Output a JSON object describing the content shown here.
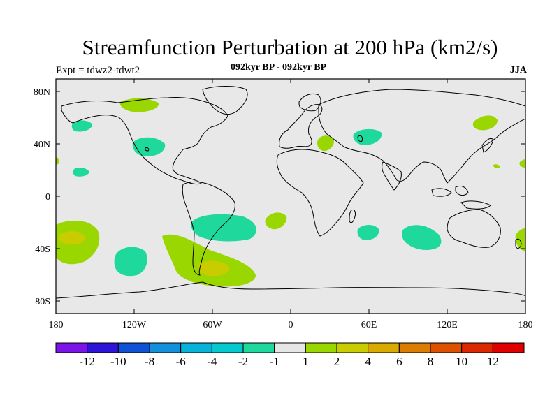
{
  "title": "Streamfunction Perturbation at 200 hPa (km2/s)",
  "left_string": "Expt = tdwz2-tdwt2",
  "center_string": "092kyr BP - 092kyr BP",
  "right_string": "JJA",
  "colors": {
    "land_background": "#e8e8e8",
    "coastline": "#000000",
    "positive_1_2": "#9ad600",
    "positive_2_4": "#c8cc00",
    "negative_minus2_minus1": "#1ed99b"
  },
  "map": {
    "projection": "cylindrical-equidistant",
    "lat_labels": [
      "80N",
      "40N",
      "0",
      "40S",
      "80S"
    ],
    "lon_labels": [
      "180",
      "120W",
      "60W",
      "0",
      "60E",
      "120E",
      "180"
    ]
  },
  "colorbar": {
    "colors": [
      "#7a14e8",
      "#2e14d8",
      "#1052d6",
      "#1390db",
      "#07b3d9",
      "#06c9cf",
      "#1ed99b",
      "#e6e6e6",
      "#9ad600",
      "#c8cc00",
      "#d9aa00",
      "#dc7c00",
      "#dc5000",
      "#dc2800",
      "#e00000"
    ],
    "labels": [
      "-12",
      "-10",
      "-8",
      "-6",
      "-4",
      "-2",
      "-1",
      "1",
      "2",
      "4",
      "6",
      "8",
      "10",
      "12"
    ]
  }
}
